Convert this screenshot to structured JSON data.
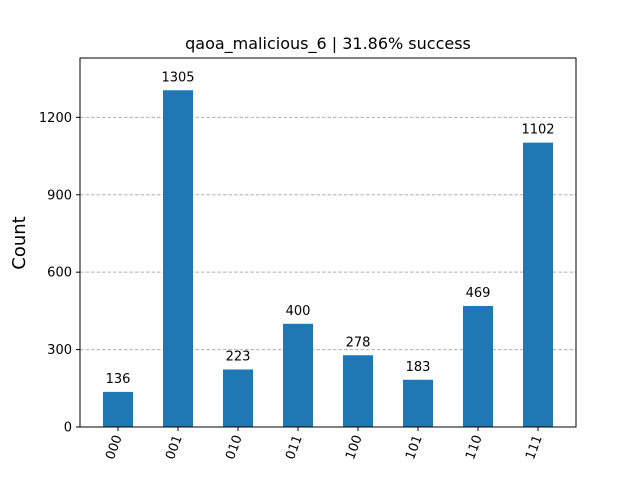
{
  "chart_data": {
    "type": "bar",
    "title": "qaoa_malicious_6 | 31.86% success",
    "xlabel": "",
    "ylabel": "Count",
    "categories": [
      "000",
      "001",
      "010",
      "011",
      "100",
      "101",
      "110",
      "111"
    ],
    "values": [
      136,
      1305,
      223,
      400,
      278,
      183,
      469,
      1102
    ],
    "ylim": [
      0,
      1430
    ],
    "yticks": [
      0,
      300,
      600,
      900,
      1200
    ],
    "grid": "y-dashed",
    "bar_color": "#1f77b4",
    "grid_color": "#b0b0b0",
    "xtick_rotation": "70 degrees"
  }
}
